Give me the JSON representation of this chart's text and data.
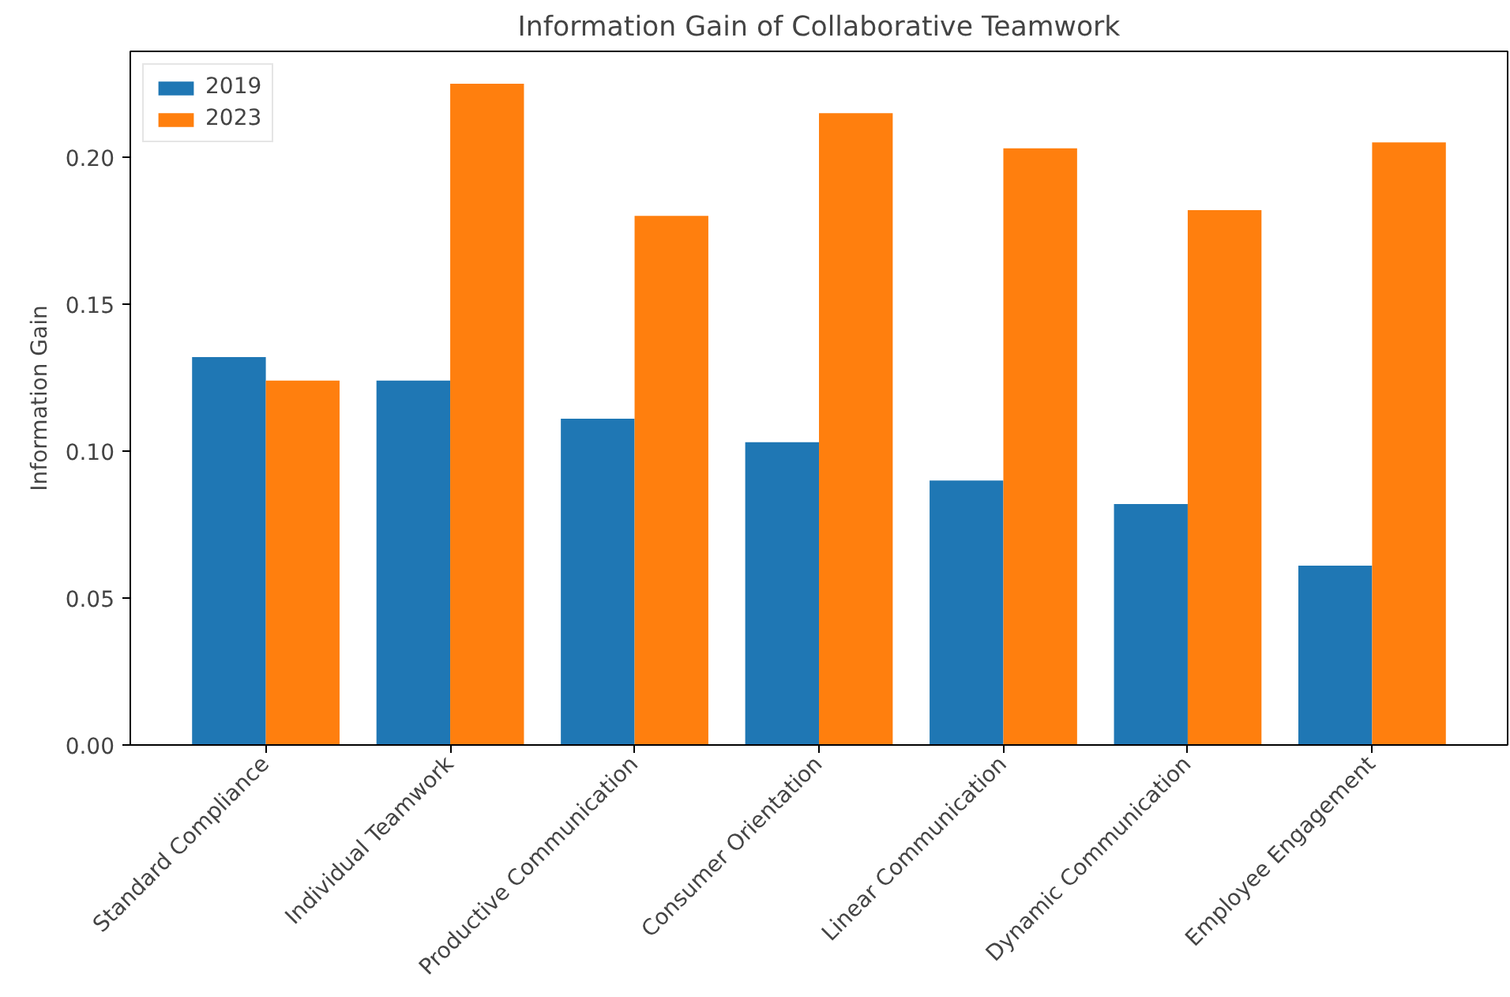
{
  "chart_data": {
    "type": "bar",
    "title": "Information Gain of Collaborative Teamwork",
    "ylabel": "Information Gain",
    "categories": [
      "Standard Compliance",
      "Individual Teamwork",
      "Productive Communication",
      "Consumer Orientation",
      "Linear Communication",
      "Dynamic Communication",
      "Employee Engagement"
    ],
    "series": [
      {
        "name": "2019",
        "color": "#1f77b4",
        "values": [
          0.132,
          0.124,
          0.111,
          0.103,
          0.09,
          0.082,
          0.061
        ]
      },
      {
        "name": "2023",
        "color": "#ff7f0e",
        "values": [
          0.124,
          0.225,
          0.18,
          0.215,
          0.203,
          0.182,
          0.205
        ]
      }
    ],
    "ylim": [
      0,
      0.236
    ],
    "yticks": [
      {
        "value": 0,
        "label": "0.00"
      },
      {
        "value": 0.05,
        "label": "0.05"
      },
      {
        "value": 0.1,
        "label": "0.10"
      },
      {
        "value": 0.15,
        "label": "0.15"
      },
      {
        "value": 0.2,
        "label": "0.20"
      }
    ],
    "grid": false,
    "legend": "top left"
  }
}
